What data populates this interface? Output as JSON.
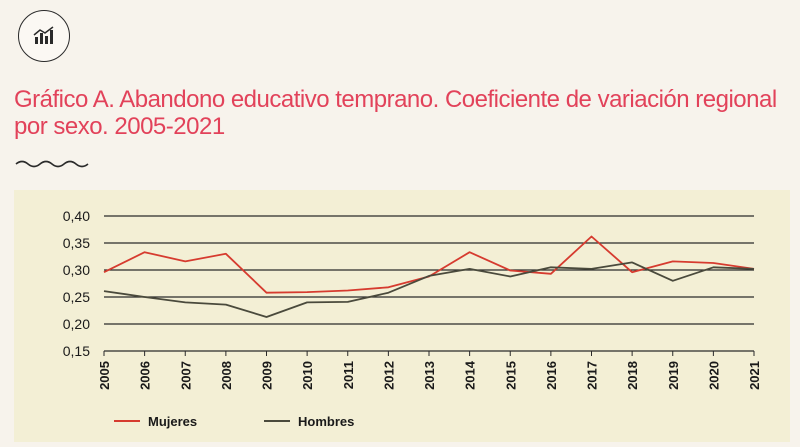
{
  "header": {
    "icon": "bar-chart-icon",
    "title": "Gráfico A. Abandono educativo temprano. Coeficiente de variación regional por sexo. 2005-2021",
    "title_color": "#e2425a"
  },
  "chart_data": {
    "type": "line",
    "title": "Gráfico A. Abandono educativo temprano. Coeficiente de variación regional por sexo. 2005-2021",
    "xlabel": "",
    "ylabel": "",
    "categories": [
      "2005",
      "2006",
      "2007",
      "2008",
      "2009",
      "2010",
      "2011",
      "2012",
      "2013",
      "2014",
      "2015",
      "2016",
      "2017",
      "2018",
      "2019",
      "2020",
      "2021"
    ],
    "y_ticks": [
      "0,40",
      "0,35",
      "0,30",
      "0,25",
      "0,20",
      "0,15"
    ],
    "ylim": [
      0.15,
      0.4
    ],
    "grid": true,
    "legend_position": "bottom-left",
    "series": [
      {
        "name": "Mujeres",
        "color": "#d63b2f",
        "values": [
          0.296,
          0.333,
          0.316,
          0.33,
          0.258,
          0.259,
          0.262,
          0.268,
          0.288,
          0.333,
          0.299,
          0.293,
          0.362,
          0.296,
          0.316,
          0.313,
          0.302
        ]
      },
      {
        "name": "Hombres",
        "color": "#4a4a3c",
        "values": [
          0.261,
          0.25,
          0.24,
          0.236,
          0.213,
          0.24,
          0.241,
          0.258,
          0.289,
          0.302,
          0.288,
          0.305,
          0.302,
          0.314,
          0.28,
          0.305,
          0.302
        ]
      }
    ]
  }
}
